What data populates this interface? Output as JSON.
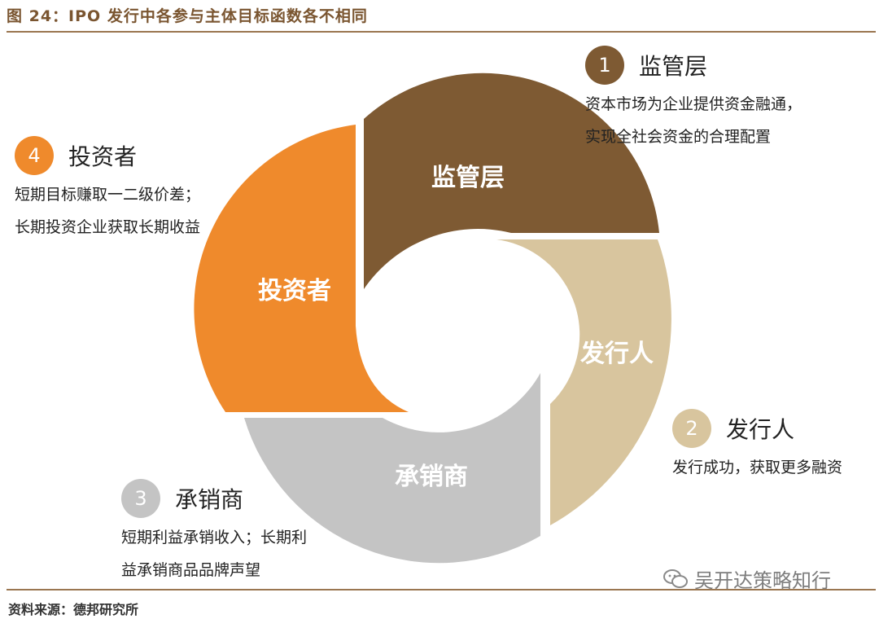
{
  "title": "图 24：IPO 发行中各参与主体目标函数各不相同",
  "source": "资料来源：德邦研究所",
  "watermark": "吴开达策略知行",
  "colors": {
    "regulator": "#7e5a33",
    "issuer": "#d8c59e",
    "underwriter": "#c4c4c4",
    "investor": "#ef8a2c",
    "rule": "#9a7650"
  },
  "segments": [
    {
      "key": "regulator",
      "label": "监管层"
    },
    {
      "key": "issuer",
      "label": "发行人"
    },
    {
      "key": "underwriter",
      "label": "承销商"
    },
    {
      "key": "investor",
      "label": "投资者"
    }
  ],
  "callouts": {
    "regulator": {
      "number": "1",
      "heading": "监管层",
      "lines": [
        "资本市场为企业提供资金融通，",
        "实现全社会资金的合理配置"
      ]
    },
    "issuer": {
      "number": "2",
      "heading": "发行人",
      "lines": [
        "发行成功，获取更多融资"
      ]
    },
    "underwriter": {
      "number": "3",
      "heading": "承销商",
      "lines": [
        "短期利益承销收入；长期利",
        "益承销商品品牌声望"
      ]
    },
    "investor": {
      "number": "4",
      "heading": "投资者",
      "lines": [
        "短期目标赚取一二级价差；",
        "长期投资企业获取长期收益"
      ]
    }
  }
}
